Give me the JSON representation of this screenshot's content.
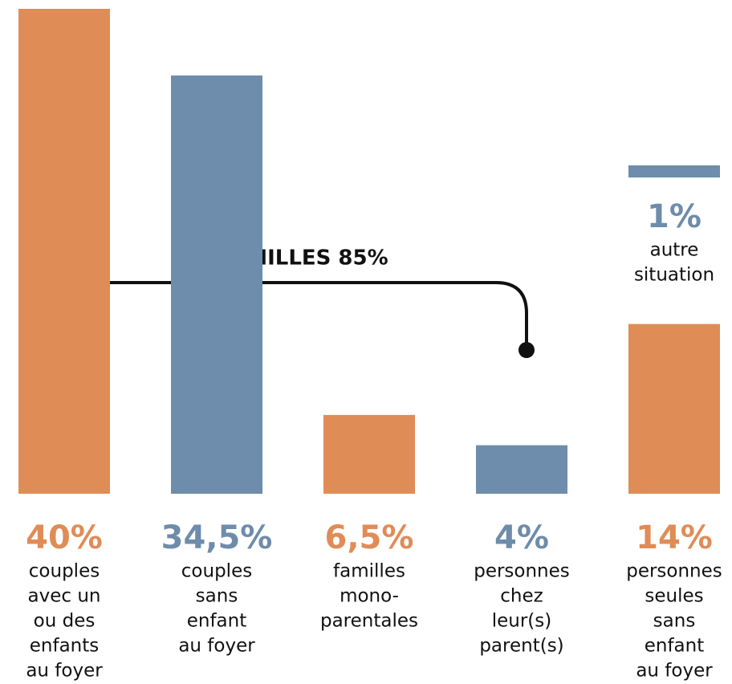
{
  "chart_data": {
    "type": "bar",
    "annotation": "FAMILLES 85%",
    "categories": [
      [
        "couples",
        "avec un",
        "ou des",
        "enfants",
        "au foyer"
      ],
      [
        "couples",
        "sans",
        "enfant",
        "au foyer"
      ],
      [
        "familles",
        "mono-",
        "parentales"
      ],
      [
        "personnes",
        "chez",
        "leur(s)",
        "parent(s)"
      ],
      [
        "personnes",
        "seules",
        "sans",
        "enfant",
        "au foyer"
      ],
      [
        "autre",
        "situation"
      ]
    ],
    "values": [
      40,
      34.5,
      6.5,
      4,
      14,
      1
    ],
    "value_labels": [
      "40%",
      "34,5%",
      "6,5%",
      "4%",
      "14%",
      "1%"
    ],
    "colors": [
      "#e08c57",
      "#6e8cab",
      "#e08c57",
      "#6e8cab",
      "#e08c57",
      "#6e8cab"
    ]
  }
}
